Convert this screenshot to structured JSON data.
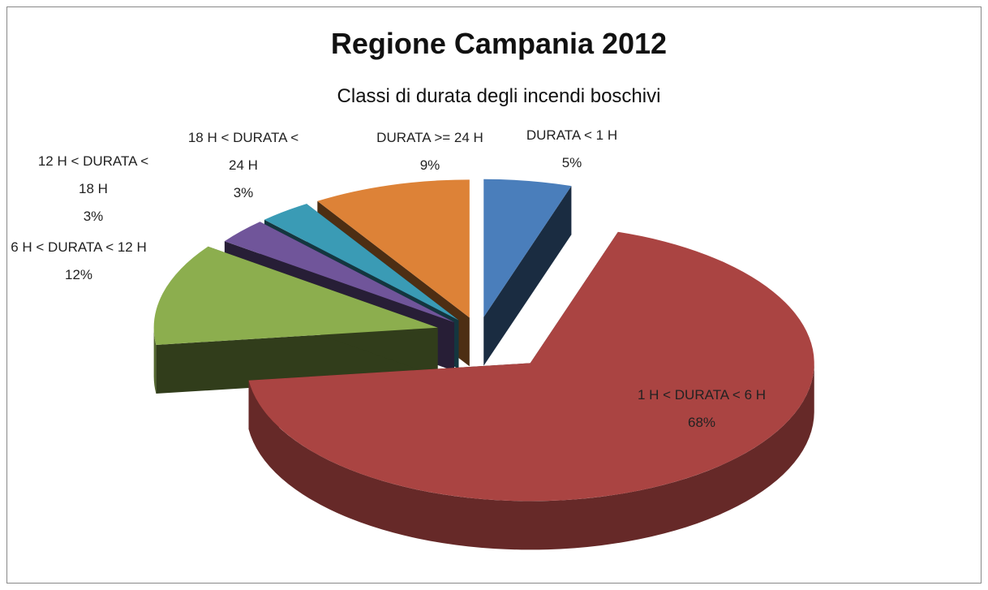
{
  "chart_data": {
    "type": "pie3d",
    "title": "Regione Campania 2012",
    "subtitle": "Classi di durata degli incendi boschivi",
    "categories": [
      "DURATA < 1 H",
      "1 H < DURATA < 6 H",
      "6 H < DURATA < 12 H",
      "12 H < DURATA < 18 H",
      "18 H < DURATA < 24 H",
      "DURATA >= 24 H"
    ],
    "values": [
      5,
      68,
      12,
      3,
      3,
      9
    ],
    "value_labels": [
      "5%",
      "68%",
      "12%",
      "3%",
      "3%",
      "9%"
    ],
    "colors": [
      "#4a7ebb",
      "#aa4442",
      "#8cae4e",
      "#70559a",
      "#3a9bb5",
      "#dd8237"
    ]
  }
}
